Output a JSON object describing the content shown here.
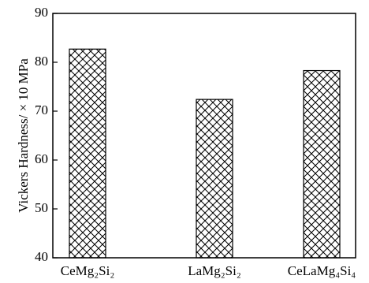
{
  "chart_data": {
    "type": "bar",
    "categories": [
      "CeMg₂Si₂",
      "LaMg₂Si₂",
      "CeLaMg₄Si₄"
    ],
    "values": [
      82.7,
      72.4,
      78.3
    ],
    "title": "",
    "xlabel": "",
    "ylabel": "Vickers Hardness/ × 10 MPa",
    "ylim": [
      40,
      90
    ],
    "yticks": [
      40,
      50,
      60,
      70,
      80,
      90
    ],
    "grid": false,
    "bar_fill": "crosshatch",
    "bar_color": "#000000"
  }
}
